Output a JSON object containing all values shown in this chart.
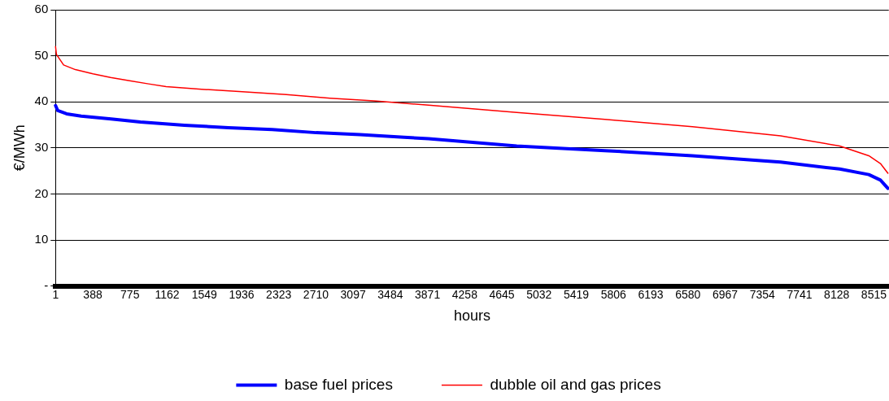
{
  "chart_data": {
    "type": "line",
    "xlabel": "hours",
    "ylabel": "€/MWh",
    "xlim": [
      1,
      8670
    ],
    "xticks": [
      1,
      388,
      775,
      1162,
      1549,
      1936,
      2323,
      2710,
      3097,
      3484,
      3871,
      4258,
      4645,
      5032,
      5419,
      5806,
      6193,
      6580,
      6967,
      7354,
      7741,
      8128,
      8515
    ],
    "ylim": [
      0,
      60
    ],
    "yticks": [
      {
        "value": 0,
        "label": "-"
      },
      10,
      20,
      30,
      40,
      50,
      60
    ],
    "grid": "y",
    "legend": "bottom",
    "marker": "none",
    "line_style": "solid",
    "series": [
      {
        "name": "base fuel prices",
        "color": "#0000ff",
        "x": [
          1,
          24,
          116,
          268,
          579,
          884,
          1341,
          1798,
          2255,
          2712,
          3169,
          3626,
          3881,
          4799,
          5717,
          6626,
          7544,
          8159,
          8462,
          8583,
          8661
        ],
        "values": [
          39.2,
          38.1,
          37.4,
          36.9,
          36.3,
          35.6,
          34.9,
          34.4,
          34.0,
          33.3,
          32.9,
          32.3,
          32.0,
          30.4,
          29.4,
          28.3,
          26.9,
          25.4,
          24.2,
          23.0,
          21.2
        ]
      },
      {
        "name": "dubble oil and gas prices",
        "color": "#ff0000",
        "x": [
          1,
          10,
          85,
          207,
          390,
          573,
          771,
          969,
          1152,
          1548,
          1944,
          2401,
          2858,
          3315,
          3881,
          4799,
          5717,
          6626,
          7544,
          8159,
          8462,
          8583,
          8661
        ],
        "values": [
          52,
          50.3,
          48,
          47,
          46.1,
          45.3,
          44.6,
          43.9,
          43.3,
          42.7,
          42.2,
          41.6,
          40.8,
          40.2,
          39.3,
          37.7,
          36.2,
          34.6,
          32.6,
          30.4,
          28.3,
          26.6,
          24.5
        ]
      }
    ]
  }
}
